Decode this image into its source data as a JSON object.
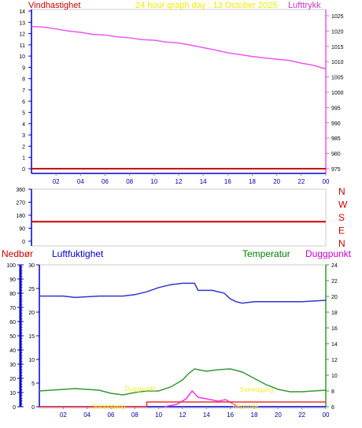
{
  "panel1": {
    "label_left": "Vindhastighet",
    "title": "24 hour graph day : 13 October 2025",
    "label_right": "Lufttrykk",
    "left_ticks": [
      "0",
      "1",
      "2",
      "3",
      "4",
      "5",
      "6",
      "7",
      "8",
      "9",
      "10",
      "11",
      "12",
      "13",
      "14"
    ],
    "right_ticks": [
      "975",
      "980",
      "985",
      "990",
      "995",
      "1000",
      "1005",
      "1010",
      "1015",
      "1020",
      "1025"
    ],
    "x_ticks": [
      "02",
      "04",
      "06",
      "08",
      "10",
      "12",
      "14",
      "16",
      "18",
      "20",
      "22",
      "00"
    ]
  },
  "panel2": {
    "left_ticks": [
      "0",
      "90",
      "180",
      "270",
      "360"
    ],
    "compass": [
      "N",
      "W",
      "S",
      "E",
      "N"
    ],
    "x_ticks": []
  },
  "panel3": {
    "label_nedbor": "Nedbør",
    "label_humidity": "Luftfuktighet",
    "label_temperature": "Temperatur",
    "label_dewpoint": "Duggpunkt",
    "rain_ticks": [
      "0",
      "5",
      "10",
      "15",
      "20",
      "25",
      "30"
    ],
    "humidity_ticks": [
      "0",
      "10",
      "20",
      "30",
      "40",
      "50",
      "60",
      "70",
      "80",
      "90",
      "100"
    ],
    "temp_ticks": [
      "6",
      "8",
      "10",
      "12",
      "14",
      "16",
      "18",
      "20",
      "22",
      "24"
    ],
    "x_ticks": [
      "02",
      "04",
      "06",
      "08",
      "10",
      "12",
      "14",
      "16",
      "18",
      "20",
      "22",
      "00"
    ],
    "annotations": [
      "Duggpunkt",
      "Soloppgang",
      "Solnedgang",
      "Regnrate"
    ]
  },
  "colors": {
    "wind": "#cc0000",
    "wind_dir": "#cc0000",
    "pressure": "#ee55ee",
    "humidity": "#3333cc",
    "temperature": "#339933",
    "dewpoint": "#ee33ee",
    "rain": "#ee3333",
    "annot": "#eeee33",
    "title": "#eeee00",
    "axis_blue": "#0000cc"
  },
  "chart_data": [
    {
      "type": "line",
      "title": "24 hour graph day : 13 October 2025",
      "x_range": [
        0,
        24
      ],
      "x_ticks": [
        "02",
        "04",
        "06",
        "08",
        "10",
        "12",
        "14",
        "16",
        "18",
        "20",
        "22",
        "00"
      ],
      "series": [
        {
          "name": "Vindhastighet",
          "axis": "left",
          "ylim": [
            0,
            14
          ],
          "points": [
            [
              0,
              0
            ],
            [
              24,
              0
            ]
          ]
        },
        {
          "name": "Lufttrykk",
          "axis": "right",
          "ylim": [
            975,
            1025
          ],
          "points": [
            [
              0,
              1021.5
            ],
            [
              1,
              1021.3
            ],
            [
              2,
              1020.7
            ],
            [
              3,
              1020.0
            ],
            [
              4,
              1019.6
            ],
            [
              5,
              1018.9
            ],
            [
              6,
              1018.7
            ],
            [
              7,
              1018.1
            ],
            [
              8,
              1017.8
            ],
            [
              9,
              1017.2
            ],
            [
              10,
              1017.0
            ],
            [
              11,
              1016.4
            ],
            [
              12,
              1016.1
            ],
            [
              13,
              1015.4
            ],
            [
              14,
              1014.6
            ],
            [
              15,
              1013.8
            ],
            [
              16,
              1012.9
            ],
            [
              17,
              1012.3
            ],
            [
              18,
              1011.7
            ],
            [
              19,
              1011.2
            ],
            [
              20,
              1010.8
            ],
            [
              21,
              1010.4
            ],
            [
              22,
              1009.5
            ],
            [
              23,
              1008.8
            ],
            [
              24,
              1007.6
            ]
          ]
        }
      ]
    },
    {
      "type": "line",
      "x_range": [
        0,
        24
      ],
      "series": [
        {
          "name": "Vindretning",
          "ylim": [
            0,
            360
          ],
          "points": [
            [
              0,
              135
            ],
            [
              24,
              135
            ]
          ]
        }
      ]
    },
    {
      "type": "line",
      "x_range": [
        0,
        24
      ],
      "x_ticks": [
        "02",
        "04",
        "06",
        "08",
        "10",
        "12",
        "14",
        "16",
        "18",
        "20",
        "22",
        "00"
      ],
      "series": [
        {
          "name": "Luftfuktighet",
          "axis": "humidity",
          "ylim": [
            0,
            100
          ],
          "points": [
            [
              0,
              78
            ],
            [
              2,
              78
            ],
            [
              3,
              77
            ],
            [
              5,
              78
            ],
            [
              7,
              78
            ],
            [
              8,
              79
            ],
            [
              9,
              81
            ],
            [
              10,
              84
            ],
            [
              11,
              86
            ],
            [
              12,
              87
            ],
            [
              13,
              87
            ],
            [
              13.3,
              82
            ],
            [
              14.5,
              82
            ],
            [
              15.5,
              80
            ],
            [
              16,
              76
            ],
            [
              16.5,
              74
            ],
            [
              17,
              73
            ],
            [
              18,
              74
            ],
            [
              19,
              74
            ],
            [
              20,
              74
            ],
            [
              22,
              74
            ],
            [
              24,
              75
            ]
          ]
        },
        {
          "name": "Temperatur",
          "axis": "temp",
          "ylim": [
            6,
            24
          ],
          "points": [
            [
              0,
              8
            ],
            [
              2,
              8.2
            ],
            [
              3,
              8.3
            ],
            [
              5,
              8.1
            ],
            [
              6,
              7.7
            ],
            [
              7,
              7.5
            ],
            [
              8,
              7.8
            ],
            [
              9,
              8.0
            ],
            [
              10,
              8.0
            ],
            [
              11,
              8.5
            ],
            [
              12,
              9.4
            ],
            [
              12.5,
              10.2
            ],
            [
              13,
              10.8
            ],
            [
              14,
              10.5
            ],
            [
              15,
              10.7
            ],
            [
              16,
              10.8
            ],
            [
              17,
              10.4
            ],
            [
              18,
              9.6
            ],
            [
              19,
              8.8
            ],
            [
              20,
              8.2
            ],
            [
              21,
              7.9
            ],
            [
              22,
              7.9
            ],
            [
              23,
              8.0
            ],
            [
              24,
              8.1
            ]
          ]
        },
        {
          "name": "Duggpunkt",
          "axis": "temp",
          "ylim": [
            6,
            24
          ],
          "points": [
            [
              10.5,
              6.0
            ],
            [
              11.5,
              6.3
            ],
            [
              12.3,
              7.0
            ],
            [
              12.8,
              8.0
            ],
            [
              13.3,
              7.2
            ],
            [
              14,
              7.0
            ],
            [
              15,
              6.7
            ],
            [
              15.6,
              6.9
            ],
            [
              16.3,
              6.3
            ],
            [
              16.6,
              6.0
            ]
          ]
        },
        {
          "name": "Nedbør",
          "axis": "rain",
          "ylim": [
            0,
            30
          ],
          "points": [
            [
              0,
              0
            ],
            [
              9,
              0
            ],
            [
              9,
              1
            ],
            [
              24,
              1
            ]
          ]
        }
      ]
    }
  ]
}
